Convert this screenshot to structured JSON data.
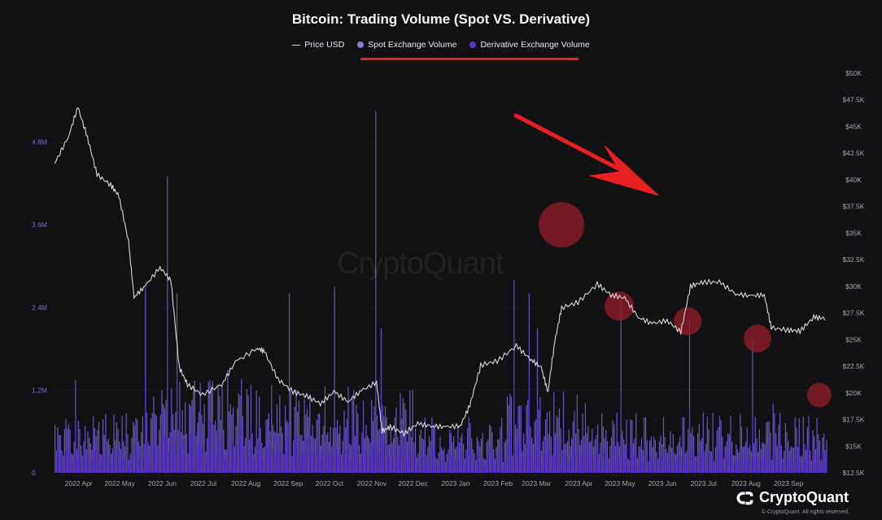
{
  "title": "Bitcoin: Trading Volume (Spot VS. Derivative)",
  "legend": [
    {
      "name": "Price USD",
      "color": "#d8d8d8",
      "kind": "line"
    },
    {
      "name": "Spot Exchange Volume",
      "color": "#8b7ad8",
      "kind": "dot"
    },
    {
      "name": "Derivative Exchange Volume",
      "color": "#5a35cf",
      "kind": "dot"
    }
  ],
  "watermark": "CryptoQuant",
  "brand": "CryptoQuant",
  "copyright": "© CryptoQuant. All rights reserved.",
  "colors": {
    "background": "#111113",
    "price": "#d8d8d8",
    "spot": "#8b7ad8",
    "derivative": "#5a35cf",
    "annotation": "#ea1f1f",
    "highlight": "#8f1c25"
  },
  "chart_data": {
    "type": "bar",
    "x_tick_labels": [
      "2022 Apr",
      "2022 May",
      "2022 Jun",
      "2022 Jul",
      "2022 Aug",
      "2022 Sep",
      "2022 Oct",
      "2022 Nov",
      "2022 Dec",
      "2023 Jan",
      "2023 Feb",
      "2023 Mar",
      "2023 Apr",
      "2023 May",
      "2023 Jun",
      "2023 Jul",
      "2023 Aug",
      "2023 Sep"
    ],
    "y_left_ticks": [
      "0",
      "1.2M",
      "2.4M",
      "3.6M",
      "4.8M"
    ],
    "y_left_values": [
      0,
      1200000,
      2400000,
      3600000,
      4800000
    ],
    "y_right_ticks": [
      "$12.5K",
      "$15K",
      "$17.5K",
      "$20K",
      "$22.5K",
      "$25K",
      "$27.5K",
      "$30K",
      "$32.5K",
      "$35K",
      "$37.5K",
      "$40K",
      "$42.5K",
      "$45K",
      "$47.5K",
      "$50K"
    ],
    "y_right_values": [
      12500,
      15000,
      17500,
      20000,
      22500,
      25000,
      27500,
      30000,
      32500,
      35000,
      37500,
      40000,
      42500,
      45000,
      47500,
      50000
    ],
    "ylim_left": [
      0,
      5800000
    ],
    "ylim_right": [
      12500,
      50000
    ],
    "price_series": {
      "name": "Price USD",
      "x": [
        "2022-03-15",
        "2022-03-25",
        "2022-04-01",
        "2022-04-08",
        "2022-04-15",
        "2022-04-25",
        "2022-05-01",
        "2022-05-08",
        "2022-05-12",
        "2022-05-20",
        "2022-05-31",
        "2022-06-08",
        "2022-06-14",
        "2022-06-20",
        "2022-07-01",
        "2022-07-15",
        "2022-07-25",
        "2022-08-10",
        "2022-08-15",
        "2022-08-25",
        "2022-09-05",
        "2022-09-15",
        "2022-09-25",
        "2022-10-05",
        "2022-10-15",
        "2022-10-25",
        "2022-11-05",
        "2022-11-09",
        "2022-11-15",
        "2022-11-25",
        "2022-12-05",
        "2022-12-15",
        "2022-12-25",
        "2023-01-05",
        "2023-01-12",
        "2023-01-20",
        "2023-02-01",
        "2023-02-15",
        "2023-02-25",
        "2023-03-05",
        "2023-03-10",
        "2023-03-15",
        "2023-03-20",
        "2023-04-01",
        "2023-04-15",
        "2023-04-25",
        "2023-05-05",
        "2023-05-15",
        "2023-05-25",
        "2023-06-05",
        "2023-06-15",
        "2023-06-22",
        "2023-07-01",
        "2023-07-13",
        "2023-07-25",
        "2023-08-05",
        "2023-08-15",
        "2023-08-20",
        "2023-09-01",
        "2023-09-10",
        "2023-09-20",
        "2023-09-28"
      ],
      "y": [
        41500,
        44000,
        46800,
        44000,
        40500,
        39500,
        38500,
        34200,
        29000,
        30000,
        31800,
        30500,
        22400,
        20800,
        19800,
        20800,
        22900,
        24200,
        23900,
        21300,
        20100,
        19700,
        19000,
        20100,
        19200,
        20200,
        21000,
        16400,
        16800,
        16200,
        17100,
        16900,
        16800,
        16900,
        18800,
        22600,
        23000,
        24400,
        23200,
        22400,
        20100,
        24800,
        28000,
        28500,
        30200,
        29200,
        28900,
        27100,
        26500,
        26800,
        25700,
        30000,
        30400,
        30400,
        29300,
        29100,
        29200,
        26100,
        25900,
        25800,
        27100,
        27000
      ]
    },
    "highlights": [
      "2023-03-20",
      "2023-05-01",
      "2023-06-20",
      "2023-08-10",
      "2023-09-24"
    ]
  }
}
